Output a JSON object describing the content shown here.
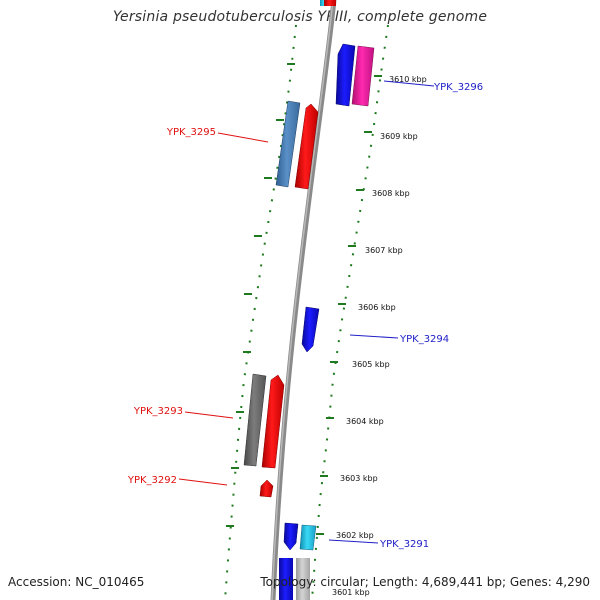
{
  "title": "Yersinia pseudotuberculosis YPIII, complete genome",
  "footer": {
    "accession": "Accession: NC_010465",
    "summary": "Topology: circular; Length: 4,689,441 bp; Genes: 4,290"
  },
  "colors": {
    "axis": "#7a7a7a",
    "tick_marks": "#1f7a1f",
    "forward_label": "#2020c8",
    "reverse_label": "#e01010",
    "gene_blue": "#1010f0",
    "gene_red": "#f01010",
    "gene_pink": "#f020a0",
    "gene_cyan": "#20c8e8",
    "gene_steel": "#4a7fb5",
    "gene_gray": "#6e6e6e"
  },
  "scale_labels": [
    "3610 kbp",
    "3609 kbp",
    "3608 kbp",
    "3607 kbp",
    "3606 kbp",
    "3605 kbp",
    "3604 kbp",
    "3603 kbp",
    "3602 kbp",
    "3601 kbp"
  ],
  "gene_labels": [
    {
      "text": "YPK_3296",
      "strand": "forward"
    },
    {
      "text": "YPK_3295",
      "strand": "reverse"
    },
    {
      "text": "YPK_3294",
      "strand": "forward"
    },
    {
      "text": "YPK_3293",
      "strand": "reverse"
    },
    {
      "text": "YPK_3292",
      "strand": "reverse"
    },
    {
      "text": "YPK_3291",
      "strand": "forward"
    }
  ]
}
